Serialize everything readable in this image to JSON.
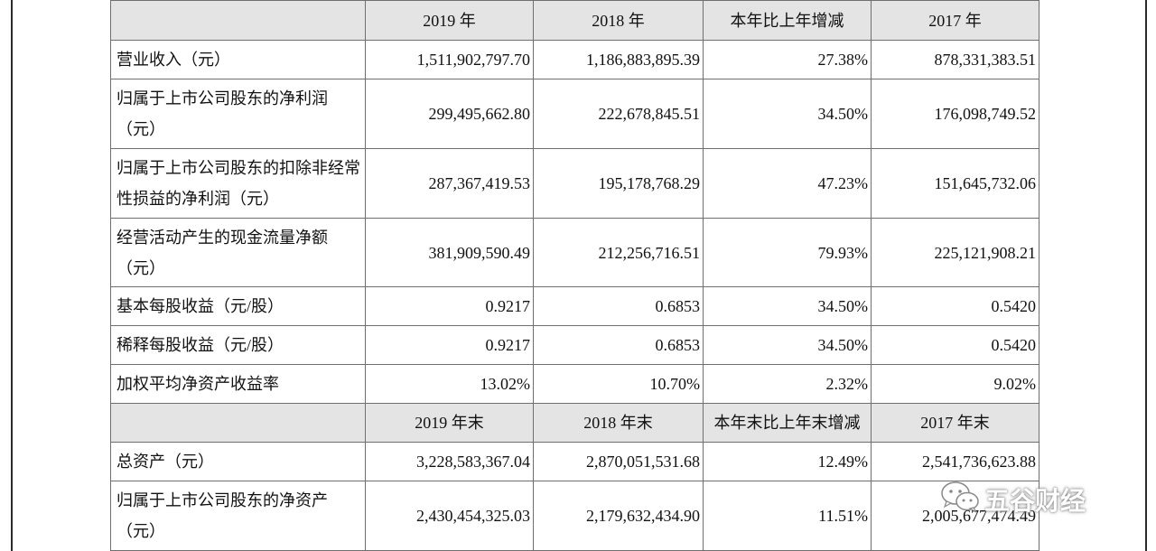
{
  "table": {
    "header1": [
      "",
      "2019 年",
      "2018 年",
      "本年比上年增减",
      "2017 年"
    ],
    "rows1": [
      {
        "label": "营业收入（元）",
        "values": [
          "1,511,902,797.70",
          "1,186,883,895.39",
          "27.38%",
          "878,331,383.51"
        ]
      },
      {
        "label": "归属于上市公司股东的净利润（元）",
        "values": [
          "299,495,662.80",
          "222,678,845.51",
          "34.50%",
          "176,098,749.52"
        ]
      },
      {
        "label": "归属于上市公司股东的扣除非经常性损益的净利润（元）",
        "values": [
          "287,367,419.53",
          "195,178,768.29",
          "47.23%",
          "151,645,732.06"
        ]
      },
      {
        "label": "经营活动产生的现金流量净额（元）",
        "values": [
          "381,909,590.49",
          "212,256,716.51",
          "79.93%",
          "225,121,908.21"
        ]
      },
      {
        "label": "基本每股收益（元/股）",
        "values": [
          "0.9217",
          "0.6853",
          "34.50%",
          "0.5420"
        ]
      },
      {
        "label": "稀释每股收益（元/股）",
        "values": [
          "0.9217",
          "0.6853",
          "34.50%",
          "0.5420"
        ]
      },
      {
        "label": "加权平均净资产收益率",
        "values": [
          "13.02%",
          "10.70%",
          "2.32%",
          "9.02%"
        ]
      }
    ],
    "header2": [
      "",
      "2019 年末",
      "2018 年末",
      "本年末比上年末增减",
      "2017 年末"
    ],
    "rows2": [
      {
        "label": "总资产（元）",
        "values": [
          "3,228,583,367.04",
          "2,870,051,531.68",
          "12.49%",
          "2,541,736,623.88"
        ]
      },
      {
        "label": "归属于上市公司股东的净资产（元）",
        "values": [
          "2,430,454,325.03",
          "2,179,632,434.90",
          "11.51%",
          "2,005,677,474.49"
        ]
      }
    ]
  },
  "watermark": {
    "text": "五谷财经",
    "icon": "wechat-icon"
  }
}
